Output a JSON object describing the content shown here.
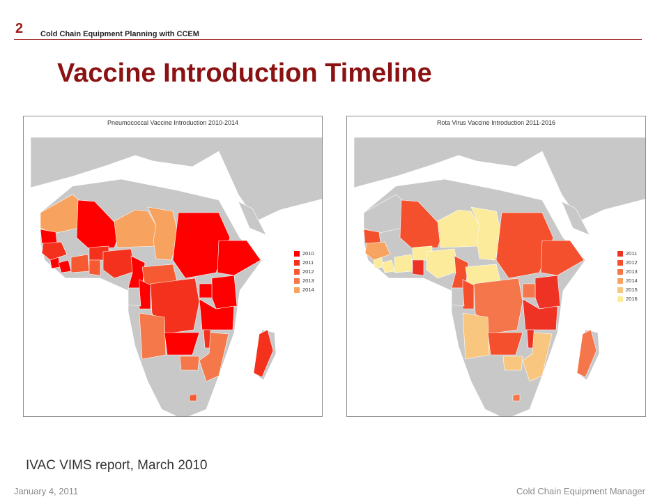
{
  "header": {
    "slide_number": "2",
    "title": "Cold Chain Equipment Planning with CCEM"
  },
  "page_title": "Vaccine Introduction Timeline",
  "maps": [
    {
      "title": "Pneumococcal Vaccine Introduction 2010-2014",
      "legend": [
        {
          "label": "2010",
          "color": "#ff0000"
        },
        {
          "label": "2011",
          "color": "#f4311c"
        },
        {
          "label": "2012",
          "color": "#f55a32"
        },
        {
          "label": "2013",
          "color": "#f5784a"
        },
        {
          "label": "2014",
          "color": "#f7a25e"
        }
      ],
      "regions": [
        {
          "name": "Mauritania",
          "color": "#f7a25e"
        },
        {
          "name": "Mali",
          "color": "#ff0000"
        },
        {
          "name": "Niger",
          "color": "#f7a25e"
        },
        {
          "name": "Chad",
          "color": "#f7a25e"
        },
        {
          "name": "Sudan",
          "color": "#ff0000"
        },
        {
          "name": "Ethiopia",
          "color": "#ff0000"
        },
        {
          "name": "Senegal",
          "color": "#ff0000"
        },
        {
          "name": "Guinea",
          "color": "#f4311c"
        },
        {
          "name": "Sierra Leone",
          "color": "#ff0000"
        },
        {
          "name": "Liberia",
          "color": "#ff0000"
        },
        {
          "name": "Cote d'Ivoire",
          "color": "#f55a32"
        },
        {
          "name": "Burkina Faso",
          "color": "#f4311c"
        },
        {
          "name": "Ghana",
          "color": "#f55a32"
        },
        {
          "name": "Nigeria",
          "color": "#f4311c"
        },
        {
          "name": "Cameroon",
          "color": "#ff0000"
        },
        {
          "name": "Central African Republic",
          "color": "#f55a32"
        },
        {
          "name": "DR Congo",
          "color": "#f4311c"
        },
        {
          "name": "Congo",
          "color": "#ff0000"
        },
        {
          "name": "Gabon",
          "color": "#c8c8c8"
        },
        {
          "name": "Kenya",
          "color": "#ff0000"
        },
        {
          "name": "Uganda",
          "color": "#ff0000"
        },
        {
          "name": "Tanzania",
          "color": "#ff0000"
        },
        {
          "name": "Angola",
          "color": "#f5784a"
        },
        {
          "name": "Zambia",
          "color": "#ff0000"
        },
        {
          "name": "Malawi",
          "color": "#f4311c"
        },
        {
          "name": "Mozambique",
          "color": "#f5784a"
        },
        {
          "name": "Zimbabwe",
          "color": "#f5784a"
        },
        {
          "name": "Madagascar",
          "color": "#f4311c"
        },
        {
          "name": "Lesotho",
          "color": "#f55a32"
        }
      ]
    },
    {
      "title": "Rota Virus Vaccine Introduction 2011-2016",
      "legend": [
        {
          "label": "2011",
          "color": "#ee3224"
        },
        {
          "label": "2012",
          "color": "#f4502e"
        },
        {
          "label": "2013",
          "color": "#f5764a"
        },
        {
          "label": "2014",
          "color": "#f7a362"
        },
        {
          "label": "2015",
          "color": "#f9c67f"
        },
        {
          "label": "2016",
          "color": "#fbeb9a"
        }
      ],
      "regions": [
        {
          "name": "Mauritania",
          "color": "#c8c8c8"
        },
        {
          "name": "Mali",
          "color": "#f4502e"
        },
        {
          "name": "Niger",
          "color": "#fbeb9a"
        },
        {
          "name": "Chad",
          "color": "#fbeb9a"
        },
        {
          "name": "Sudan",
          "color": "#f4502e"
        },
        {
          "name": "Ethiopia",
          "color": "#f4502e"
        },
        {
          "name": "Senegal",
          "color": "#f4502e"
        },
        {
          "name": "Guinea",
          "color": "#f7a362"
        },
        {
          "name": "Sierra Leone",
          "color": "#fbeb9a"
        },
        {
          "name": "Liberia",
          "color": "#fbeb9a"
        },
        {
          "name": "Cote d'Ivoire",
          "color": "#fbeb9a"
        },
        {
          "name": "Burkina Faso",
          "color": "#fbeb9a"
        },
        {
          "name": "Ghana",
          "color": "#ee3224"
        },
        {
          "name": "Nigeria",
          "color": "#fbeb9a"
        },
        {
          "name": "Cameroon",
          "color": "#f4502e"
        },
        {
          "name": "Central African Republic",
          "color": "#fbeb9a"
        },
        {
          "name": "DR Congo",
          "color": "#f5764a"
        },
        {
          "name": "Congo",
          "color": "#f4502e"
        },
        {
          "name": "Gabon",
          "color": "#c8c8c8"
        },
        {
          "name": "Kenya",
          "color": "#ee3224"
        },
        {
          "name": "Uganda",
          "color": "#f5764a"
        },
        {
          "name": "Tanzania",
          "color": "#ee3224"
        },
        {
          "name": "Angola",
          "color": "#f9c67f"
        },
        {
          "name": "Zambia",
          "color": "#f4502e"
        },
        {
          "name": "Malawi",
          "color": "#ee3224"
        },
        {
          "name": "Mozambique",
          "color": "#f9c67f"
        },
        {
          "name": "Zimbabwe",
          "color": "#f9c67f"
        },
        {
          "name": "Madagascar",
          "color": "#f5764a"
        },
        {
          "name": "Lesotho",
          "color": "#f5764a"
        }
      ]
    }
  ],
  "source_caption": "IVAC VIMS report, March 2010",
  "footer": {
    "date": "January 4, 2011",
    "product": "Cold Chain Equipment Manager"
  }
}
